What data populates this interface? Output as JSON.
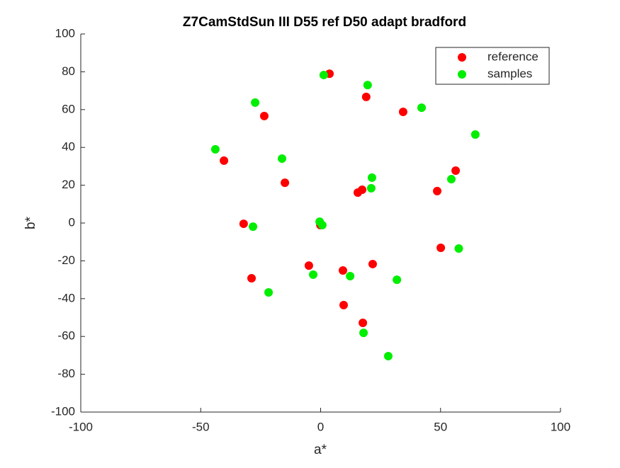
{
  "chart_data": {
    "type": "scatter",
    "title": "Z7CamStdSun III D55 ref D50 adapt bradford",
    "xlabel": "a*",
    "ylabel": "b*",
    "xlim": [
      -100,
      100
    ],
    "ylim": [
      -100,
      100
    ],
    "xticks": [
      -100,
      -50,
      0,
      50,
      100
    ],
    "yticks": [
      -100,
      -80,
      -60,
      -40,
      -20,
      0,
      20,
      40,
      60,
      80,
      100
    ],
    "legend": "upper right",
    "series": [
      {
        "name": "reference",
        "color": "#ff0000",
        "x": [
          3.7,
          19.0,
          -23.5,
          34.4,
          -40.3,
          -14.9,
          56.3,
          48.6,
          15.5,
          17.3,
          -32.1,
          -0.1,
          50.1,
          -4.9,
          9.3,
          21.7,
          -28.8,
          9.6,
          17.6
        ],
        "values": [
          79.0,
          66.7,
          56.6,
          58.8,
          33.0,
          21.3,
          27.7,
          16.9,
          16.1,
          17.6,
          -0.4,
          -1.1,
          -13.1,
          -22.5,
          -25.1,
          -21.7,
          -29.2,
          -43.4,
          -52.8
        ]
      },
      {
        "name": "samples",
        "color": "#00ee00",
        "x": [
          1.3,
          19.6,
          -27.3,
          42.1,
          64.5,
          -43.9,
          -16.1,
          21.4,
          21.1,
          54.5,
          -28.2,
          -0.4,
          0.7,
          57.6,
          -3.1,
          12.3,
          31.8,
          -21.7,
          17.9,
          28.2
        ],
        "values": [
          78.3,
          73.0,
          63.7,
          61.0,
          46.8,
          39.0,
          34.1,
          24.0,
          18.4,
          23.2,
          -1.9,
          0.7,
          -1.1,
          -13.5,
          -27.3,
          -28.1,
          -30.0,
          -36.7,
          -58.1,
          -70.4
        ]
      }
    ]
  }
}
